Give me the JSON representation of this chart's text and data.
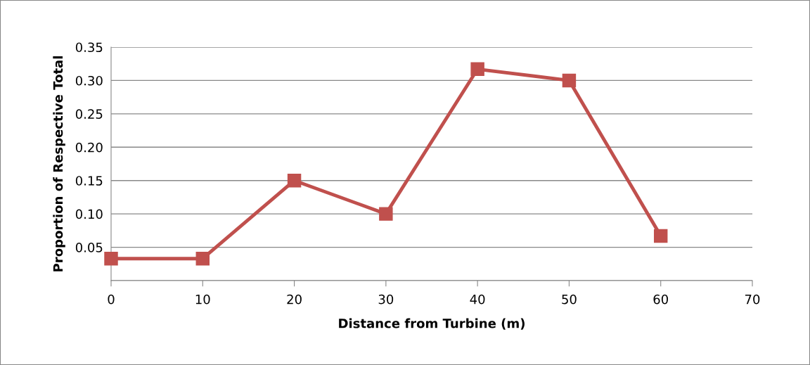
{
  "chart_data": {
    "type": "line",
    "xlabel": "Distance from Turbine (m)",
    "ylabel": "Proportion of Respective Total",
    "x": [
      0,
      10,
      20,
      30,
      40,
      50,
      60
    ],
    "series": [
      {
        "color": "#c0504d",
        "values": [
          0.033,
          0.033,
          0.15,
          0.1,
          0.317,
          0.3,
          0.067
        ]
      }
    ],
    "xlim": [
      0,
      70
    ],
    "xticks": [
      0,
      10,
      20,
      30,
      40,
      50,
      60,
      70
    ],
    "ylim": [
      0,
      0.35
    ],
    "yticks": [
      {
        "value": 0,
        "label": null
      },
      {
        "value": 0.05,
        "label": "0.05"
      },
      {
        "value": 0.1,
        "label": "0.10"
      },
      {
        "value": 0.15,
        "label": "0.15"
      },
      {
        "value": 0.2,
        "label": "0.20"
      },
      {
        "value": 0.25,
        "label": "0.25"
      },
      {
        "value": 0.3,
        "label": "0.30"
      },
      {
        "value": 0.35,
        "label": "0.35"
      }
    ],
    "grid": "y",
    "marker": "square",
    "line_style": "solid",
    "legend": false
  }
}
